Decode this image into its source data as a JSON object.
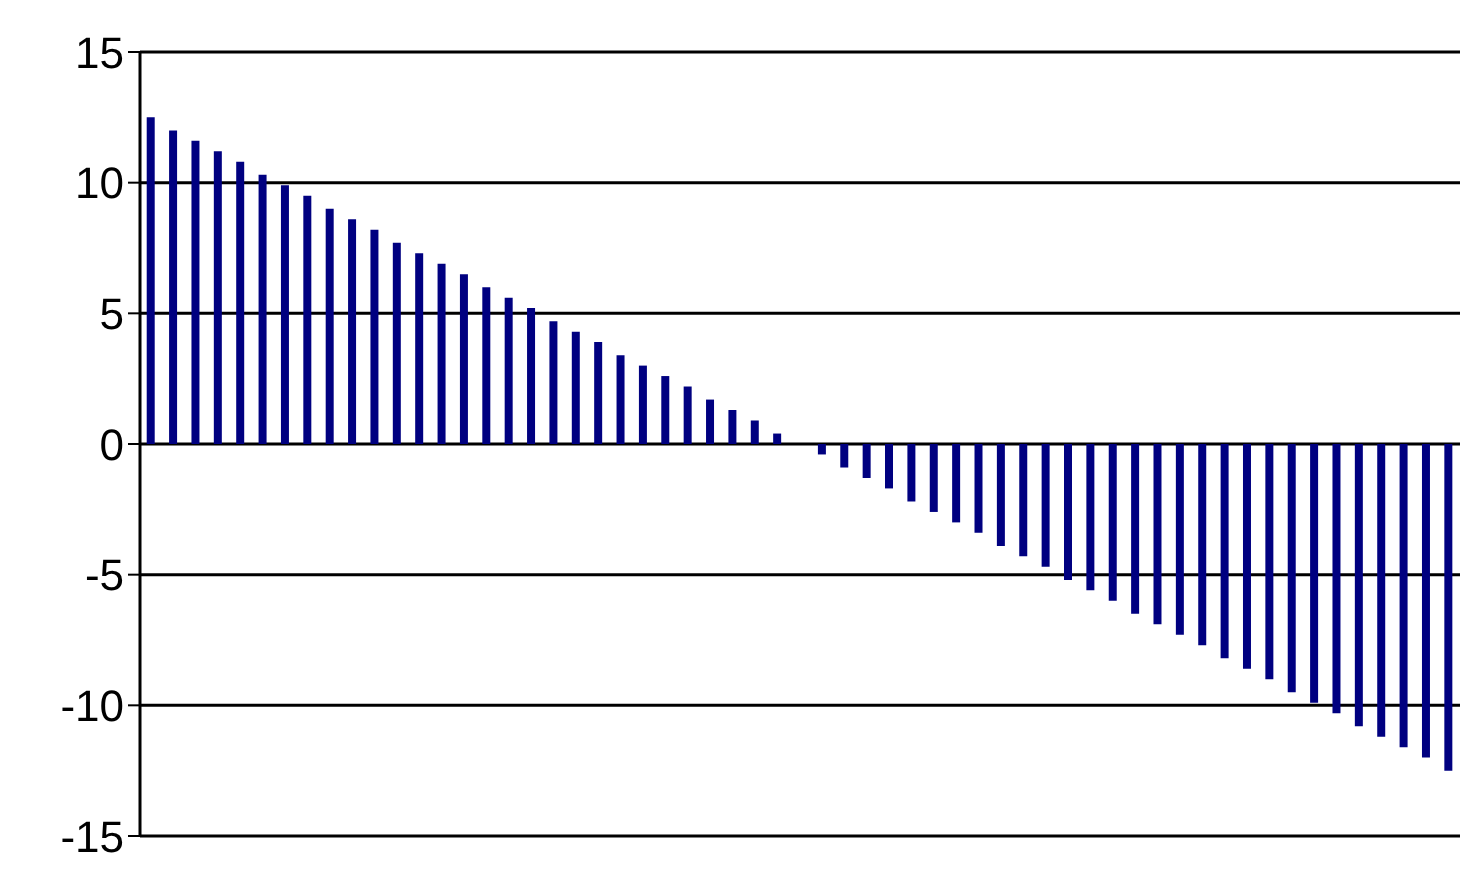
{
  "chart_data": {
    "type": "bar",
    "categories": [
      null,
      null,
      null,
      null,
      null,
      null,
      null,
      null,
      null,
      null,
      null,
      null,
      null,
      null,
      null,
      null,
      null,
      null,
      null,
      null,
      null,
      null,
      null,
      null,
      null,
      null,
      null,
      null,
      null,
      null,
      null,
      null,
      null,
      null,
      null,
      null,
      null,
      null,
      null,
      null,
      null,
      null,
      null,
      null,
      null,
      null,
      null,
      null,
      null,
      null,
      null,
      null,
      null,
      null,
      null,
      null,
      null,
      null,
      null
    ],
    "values": [
      12.5,
      12.0,
      11.6,
      11.2,
      10.8,
      10.3,
      9.9,
      9.5,
      9.0,
      8.6,
      8.2,
      7.7,
      7.3,
      6.9,
      6.5,
      6.0,
      5.6,
      5.2,
      4.7,
      4.3,
      3.9,
      3.4,
      3.0,
      2.6,
      2.2,
      1.7,
      1.3,
      0.9,
      0.4,
      0,
      -0.4,
      -0.9,
      -1.3,
      -1.7,
      -2.2,
      -2.6,
      -3.0,
      -3.4,
      -3.9,
      -4.3,
      -4.7,
      -5.2,
      -5.6,
      -6.0,
      -6.5,
      -6.9,
      -7.3,
      -7.7,
      -8.2,
      -8.6,
      -9.0,
      -9.5,
      -9.9,
      -10.3,
      -10.8,
      -11.2,
      -11.6,
      -12.0,
      -12.5
    ],
    "color": "#000080",
    "ylim": [
      -15,
      15
    ],
    "yticks": [
      -15,
      -10,
      -5,
      0,
      5,
      10,
      15
    ],
    "grid": "y",
    "legend": false
  }
}
